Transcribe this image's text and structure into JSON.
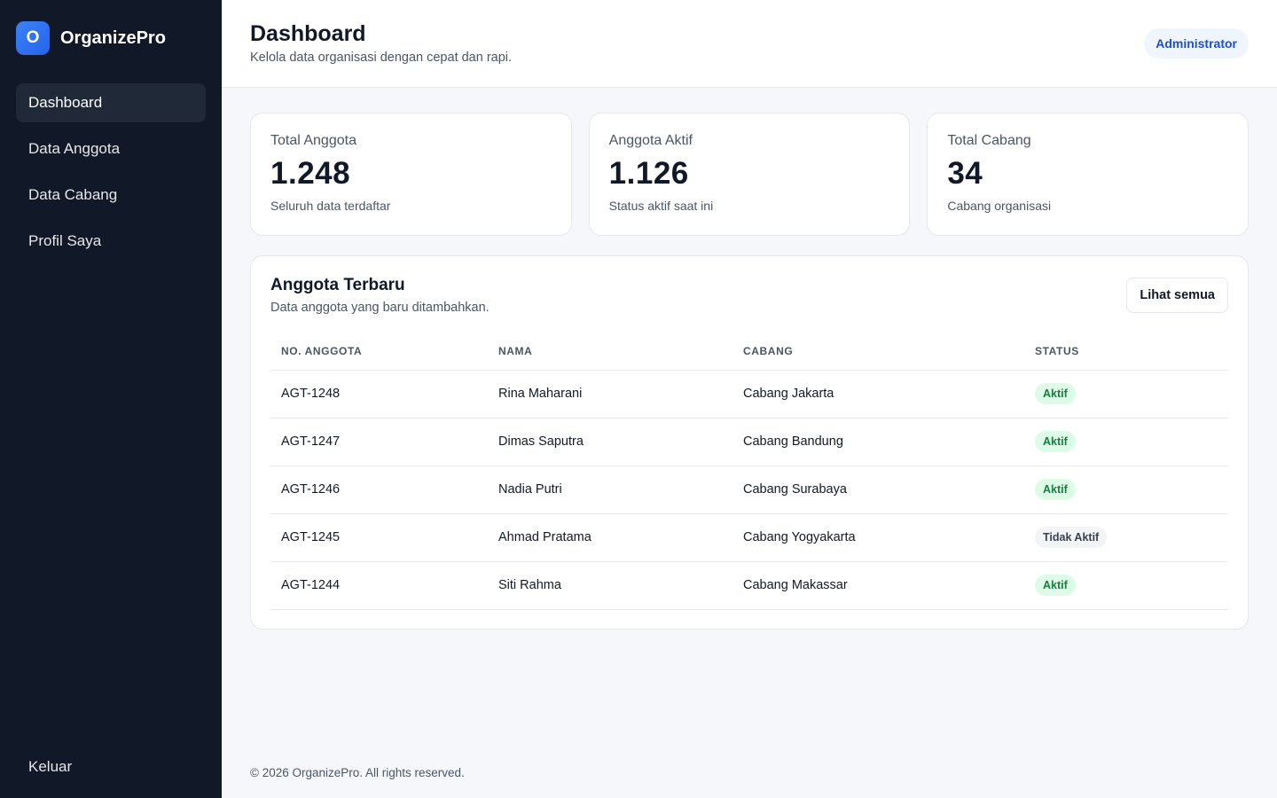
{
  "brand": {
    "logo_letter": "O",
    "name": "OrganizePro"
  },
  "nav": {
    "items": [
      {
        "label": "Dashboard",
        "active": true
      },
      {
        "label": "Data Anggota",
        "active": false
      },
      {
        "label": "Data Cabang",
        "active": false
      },
      {
        "label": "Profil Saya",
        "active": false
      }
    ],
    "logout": "Keluar"
  },
  "header": {
    "title": "Dashboard",
    "subtitle": "Kelola data organisasi dengan cepat dan rapi.",
    "role": "Administrator"
  },
  "stats": [
    {
      "label": "Total Anggota",
      "value": "1.248",
      "desc": "Seluruh data terdaftar"
    },
    {
      "label": "Anggota Aktif",
      "value": "1.126",
      "desc": "Status aktif saat ini"
    },
    {
      "label": "Total Cabang",
      "value": "34",
      "desc": "Cabang organisasi"
    }
  ],
  "members": {
    "title": "Anggota Terbaru",
    "subtitle": "Data anggota yang baru ditambahkan.",
    "view_all": "Lihat semua",
    "columns": [
      "NO. ANGGOTA",
      "NAMA",
      "CABANG",
      "STATUS"
    ],
    "rows": [
      {
        "id": "AGT-1248",
        "name": "Rina Maharani",
        "branch": "Cabang Jakarta",
        "status": "Aktif"
      },
      {
        "id": "AGT-1247",
        "name": "Dimas Saputra",
        "branch": "Cabang Bandung",
        "status": "Aktif"
      },
      {
        "id": "AGT-1246",
        "name": "Nadia Putri",
        "branch": "Cabang Surabaya",
        "status": "Aktif"
      },
      {
        "id": "AGT-1245",
        "name": "Ahmad Pratama",
        "branch": "Cabang Yogyakarta",
        "status": "Tidak Aktif"
      },
      {
        "id": "AGT-1244",
        "name": "Siti Rahma",
        "branch": "Cabang Makassar",
        "status": "Aktif"
      }
    ]
  },
  "footer": {
    "text": "© 2026 OrganizePro. All rights reserved."
  },
  "colors": {
    "sidebar_bg": "#111827",
    "accent": "#2563eb",
    "status_active_bg": "#dcfce7",
    "status_active_text": "#15803d",
    "status_inactive_bg": "#f3f4f6"
  }
}
